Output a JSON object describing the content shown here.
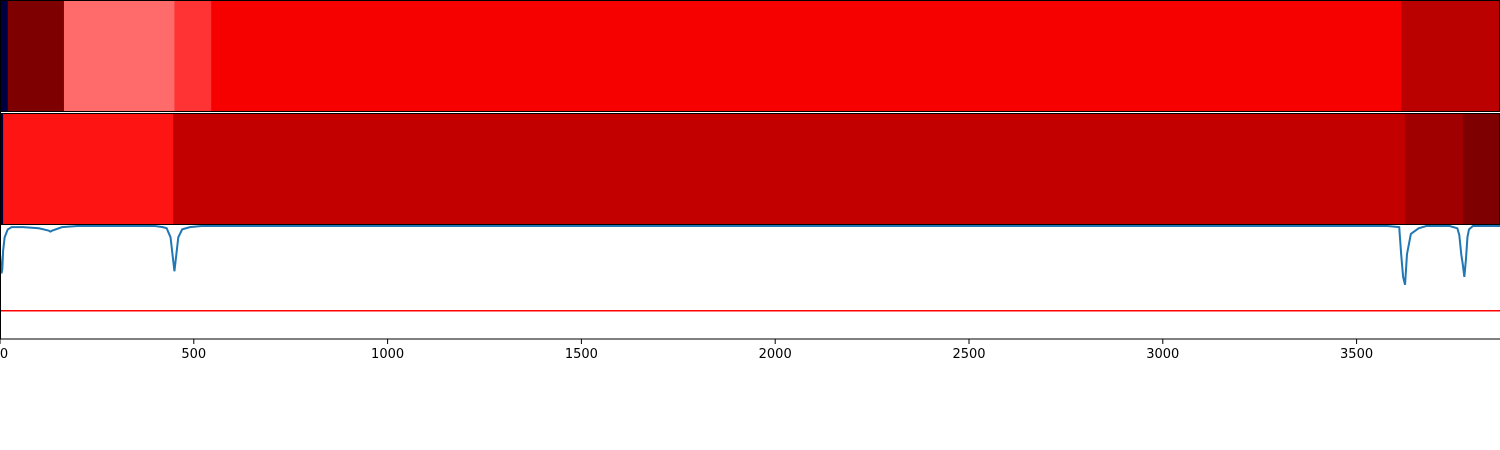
{
  "chart_data": {
    "type": "heatmap",
    "title": "",
    "xlabel": "",
    "ylabel": "",
    "xlim": [
      0,
      3870
    ],
    "grid": false,
    "legend": "none",
    "x_ticks": [
      "0",
      "500",
      "1000",
      "1500",
      "2000",
      "2500",
      "3000",
      "3500"
    ],
    "x_tick_values": [
      0,
      500,
      1000,
      1500,
      2000,
      2500,
      3000,
      3500
    ],
    "heat_rows": [
      {
        "segments": [
          {
            "start": 0,
            "end": 20,
            "color": "#000040"
          },
          {
            "start": 20,
            "end": 165,
            "color": "#7f0000"
          },
          {
            "start": 165,
            "end": 450,
            "color": "#ff6b6b"
          },
          {
            "start": 450,
            "end": 545,
            "color": "#ff3333"
          },
          {
            "start": 545,
            "end": 3615,
            "color": "#f70000"
          },
          {
            "start": 3615,
            "end": 3870,
            "color": "#bb0000"
          }
        ]
      },
      {
        "segments": [
          {
            "start": 0,
            "end": 8,
            "color": "#000040"
          },
          {
            "start": 8,
            "end": 447,
            "color": "#ff1414"
          },
          {
            "start": 447,
            "end": 3625,
            "color": "#c20000"
          },
          {
            "start": 3625,
            "end": 3775,
            "color": "#a00000"
          },
          {
            "start": 3775,
            "end": 3870,
            "color": "#7f0000"
          }
        ]
      }
    ],
    "threshold_line": {
      "y": -0.75,
      "color": "#ff0000"
    },
    "ylim": [
      -1.0,
      0.0
    ],
    "signal": {
      "color": "#1f77b4",
      "x": [
        0,
        4,
        6,
        8,
        12,
        20,
        30,
        60,
        100,
        125,
        130,
        135,
        160,
        200,
        350,
        400,
        420,
        430,
        440,
        445,
        450,
        455,
        460,
        470,
        490,
        520,
        600,
        1000,
        2000,
        3000,
        3500,
        3580,
        3610,
        3615,
        3620,
        3625,
        3630,
        3640,
        3660,
        3680,
        3740,
        3760,
        3765,
        3770,
        3774,
        3778,
        3782,
        3786,
        3790,
        3800,
        3870
      ],
      "y": [
        -0.25,
        -0.42,
        -0.38,
        -0.22,
        -0.1,
        -0.03,
        -0.01,
        -0.01,
        -0.02,
        -0.04,
        -0.05,
        -0.04,
        -0.01,
        0.0,
        0.0,
        0.0,
        -0.01,
        -0.02,
        -0.1,
        -0.25,
        -0.4,
        -0.25,
        -0.1,
        -0.03,
        -0.01,
        0.0,
        0.0,
        0.0,
        0.0,
        0.0,
        0.0,
        0.0,
        -0.01,
        -0.25,
        -0.45,
        -0.52,
        -0.25,
        -0.07,
        -0.02,
        0.0,
        0.0,
        -0.02,
        -0.08,
        -0.25,
        -0.34,
        -0.45,
        -0.3,
        -0.1,
        -0.03,
        0.0,
        0.0
      ]
    }
  }
}
